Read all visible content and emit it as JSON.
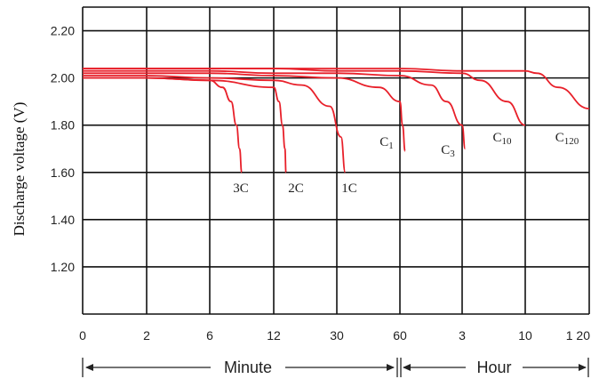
{
  "chart_data": {
    "type": "line",
    "ylabel": "Discharge voltage (V)",
    "xlabel": "",
    "ylim": [
      1.0,
      2.3
    ],
    "y_ticks": [
      "2.20",
      "2.00",
      "1.80",
      "1.60",
      "1.40",
      "1.20"
    ],
    "x_tick_labels": [
      "0",
      "2",
      "6",
      "12",
      "30",
      "60",
      "3",
      "10",
      "1 20"
    ],
    "x_spans": [
      {
        "label": "Minute"
      },
      {
        "label": "Hour"
      }
    ],
    "grid": true,
    "series": [
      {
        "name": "3C",
        "x": [
          0,
          2,
          6,
          7.2,
          8,
          8.5,
          8.8,
          9
        ],
        "y": [
          2.0,
          2.0,
          1.99,
          1.96,
          1.9,
          1.8,
          1.7,
          1.6
        ]
      },
      {
        "name": "2C",
        "x": [
          0,
          2,
          6,
          12,
          13.5,
          14.5,
          15.2,
          15.5
        ],
        "y": [
          2.0,
          2.0,
          1.99,
          1.96,
          1.9,
          1.8,
          1.7,
          1.6
        ]
      },
      {
        "name": "1C",
        "x": [
          0,
          2,
          6,
          12,
          20,
          28,
          32,
          34
        ],
        "y": [
          2.01,
          2.01,
          2.0,
          1.99,
          1.97,
          1.88,
          1.75,
          1.6
        ]
      },
      {
        "name": "C1",
        "x": [
          0,
          2,
          6,
          12,
          30,
          50,
          60,
          65,
          70
        ],
        "y": [
          2.02,
          2.02,
          2.02,
          2.01,
          2.0,
          1.96,
          1.9,
          1.8,
          1.69
        ]
      },
      {
        "name": "C3",
        "x": [
          0,
          2,
          6,
          12,
          30,
          60,
          120,
          150,
          180,
          200
        ],
        "y": [
          2.03,
          2.03,
          2.03,
          2.02,
          2.02,
          2.01,
          1.97,
          1.9,
          1.8,
          1.7
        ]
      },
      {
        "name": "C10",
        "x": [
          0,
          2,
          6,
          12,
          30,
          60,
          180,
          300,
          480,
          600
        ],
        "y": [
          2.04,
          2.04,
          2.04,
          2.04,
          2.03,
          2.03,
          2.02,
          1.99,
          1.9,
          1.8
        ]
      },
      {
        "name": "C120",
        "x": [
          0,
          2,
          6,
          12,
          30,
          60,
          180,
          600,
          1800,
          4000,
          7200
        ],
        "y": [
          2.04,
          2.04,
          2.04,
          2.04,
          2.04,
          2.04,
          2.03,
          2.03,
          2.02,
          1.96,
          1.87
        ]
      }
    ]
  }
}
